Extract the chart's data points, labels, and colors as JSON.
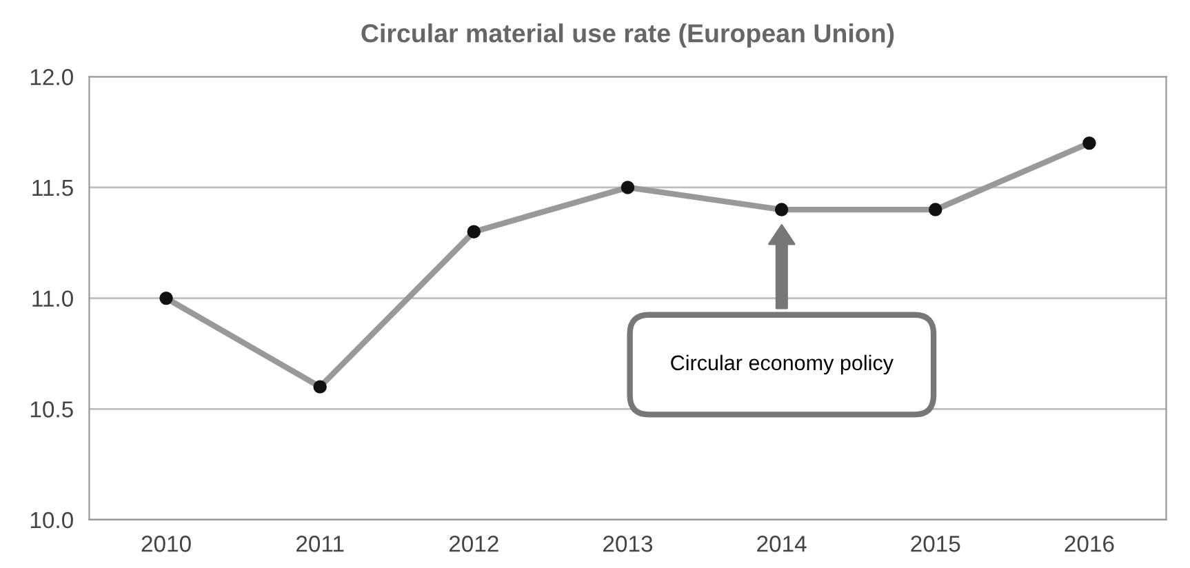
{
  "chart_data": {
    "type": "line",
    "title": "Circular material use rate (European Union)",
    "categories": [
      "2010",
      "2011",
      "2012",
      "2013",
      "2014",
      "2015",
      "2016"
    ],
    "series": [
      {
        "color": "#999999",
        "values": [
          11.0,
          10.6,
          11.3,
          11.5,
          11.4,
          11.4,
          11.7
        ]
      }
    ],
    "ylim": [
      10.0,
      12.0
    ],
    "yticks": [
      {
        "value": 10.0,
        "label": "10.0"
      },
      {
        "value": 10.5,
        "label": "10.5"
      },
      {
        "value": 11.0,
        "label": "11.0"
      },
      {
        "value": 11.5,
        "label": "11.5"
      },
      {
        "value": 12.0,
        "label": "12.0"
      }
    ],
    "grid": "y",
    "marker": "circle",
    "line_style": "solid",
    "legend": false,
    "annotations": [
      "Circular economy policy"
    ]
  }
}
